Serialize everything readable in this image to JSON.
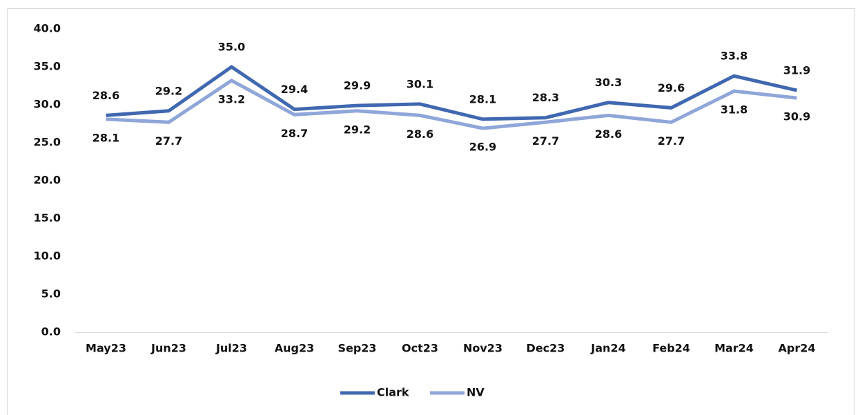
{
  "chart_data": {
    "type": "line",
    "categories": [
      "May23",
      "Jun23",
      "Jul23",
      "Aug23",
      "Sep23",
      "Oct23",
      "Nov23",
      "Dec23",
      "Jan24",
      "Feb24",
      "Mar24",
      "Apr24"
    ],
    "series": [
      {
        "name": "Clark",
        "color": "#4068b0",
        "values": [
          28.6,
          29.2,
          35.0,
          29.4,
          29.9,
          30.1,
          28.1,
          28.3,
          30.3,
          29.6,
          33.8,
          31.9
        ],
        "value_labels": [
          "28.6",
          "29.2",
          "35.0",
          "29.4",
          "29.9",
          "30.1",
          "28.1",
          "28.3",
          "30.3",
          "29.6",
          "33.8",
          "31.9"
        ]
      },
      {
        "name": "NV",
        "color": "#8fa6d9",
        "values": [
          28.1,
          27.7,
          33.2,
          28.7,
          29.2,
          28.6,
          26.9,
          27.7,
          28.6,
          27.7,
          31.8,
          30.9
        ],
        "value_labels": [
          "28.1",
          "27.7",
          "33.2",
          "28.7",
          "29.2",
          "28.6",
          "26.9",
          "27.7",
          "28.6",
          "27.7",
          "31.8",
          "30.9"
        ]
      }
    ],
    "ylim": [
      0,
      40
    ],
    "yticks": [
      {
        "value": 0,
        "label": "0.0"
      },
      {
        "value": 5,
        "label": "5.0"
      },
      {
        "value": 10,
        "label": "10.0"
      },
      {
        "value": 15,
        "label": "15.0"
      },
      {
        "value": 20,
        "label": "20.0"
      },
      {
        "value": 25,
        "label": "25.0"
      },
      {
        "value": 30,
        "label": "30.0"
      },
      {
        "value": 35,
        "label": "35.0"
      },
      {
        "value": 40,
        "label": "40.0"
      }
    ],
    "grid": false,
    "legend": "bottom"
  }
}
